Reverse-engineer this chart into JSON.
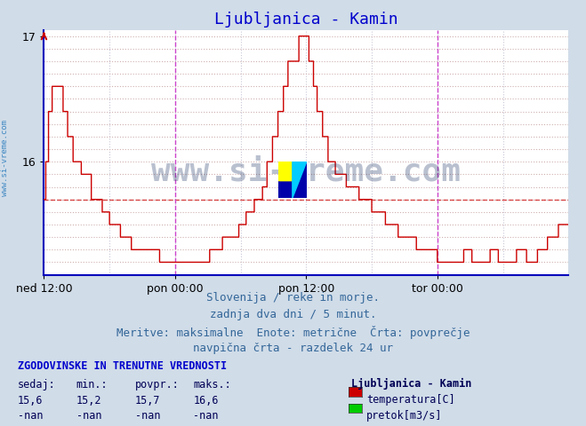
{
  "title": "Ljubljanica - Kamin",
  "title_color": "#0000cc",
  "bg_color": "#d0dce8",
  "plot_bg_color": "#ffffff",
  "line_color": "#cc0000",
  "avg_line_color": "#cc0000",
  "avg_value": 15.7,
  "ylim_min": 15.1,
  "ylim_max": 17.05,
  "yticks": [
    16,
    17
  ],
  "grid_color": "#c8c8d8",
  "grid_dot_color": "#d0b0b0",
  "vline_color": "#cc44cc",
  "vline_positions": [
    0.5,
    1.5
  ],
  "xtick_labels": [
    "ned 12:00",
    "pon 00:00",
    "pon 12:00",
    "tor 00:00"
  ],
  "xtick_positions": [
    0.0,
    0.5,
    1.0,
    1.5
  ],
  "axis_color": "#0000bb",
  "left_arrow_color": "#cc0000",
  "text_info_lines": [
    "Slovenija / reke in morje.",
    "zadnja dva dni / 5 minut.",
    "Meritve: maksimalne  Enote: metrične  Črta: povprečje",
    "navpična črta - razdelek 24 ur"
  ],
  "text_color": "#336699",
  "table_header": "ZGODOVINSKE IN TRENUTNE VREDNOSTI",
  "table_header_color": "#0000cc",
  "table_cols": [
    "sedaj:",
    "min.:",
    "povpr.:",
    "maks.:"
  ],
  "table_row1": [
    "15,6",
    "15,2",
    "15,7",
    "16,6"
  ],
  "table_row2": [
    "-nan",
    "-nan",
    "-nan",
    "-nan"
  ],
  "table_text_color": "#000055",
  "legend_title": "Ljubljanica - Kamin",
  "legend_items": [
    {
      "label": "temperatura[C]",
      "color": "#cc0000"
    },
    {
      "label": "pretok[m3/s]",
      "color": "#00cc00"
    }
  ],
  "watermark": "www.si-vreme.com",
  "watermark_color": "#1a3060",
  "watermark_alpha": 0.3,
  "sidebar_text": "www.si-vreme.com",
  "sidebar_color": "#2277bb",
  "logo_colors": {
    "yellow": "#ffff00",
    "cyan": "#00ccff",
    "blue": "#0000aa"
  }
}
